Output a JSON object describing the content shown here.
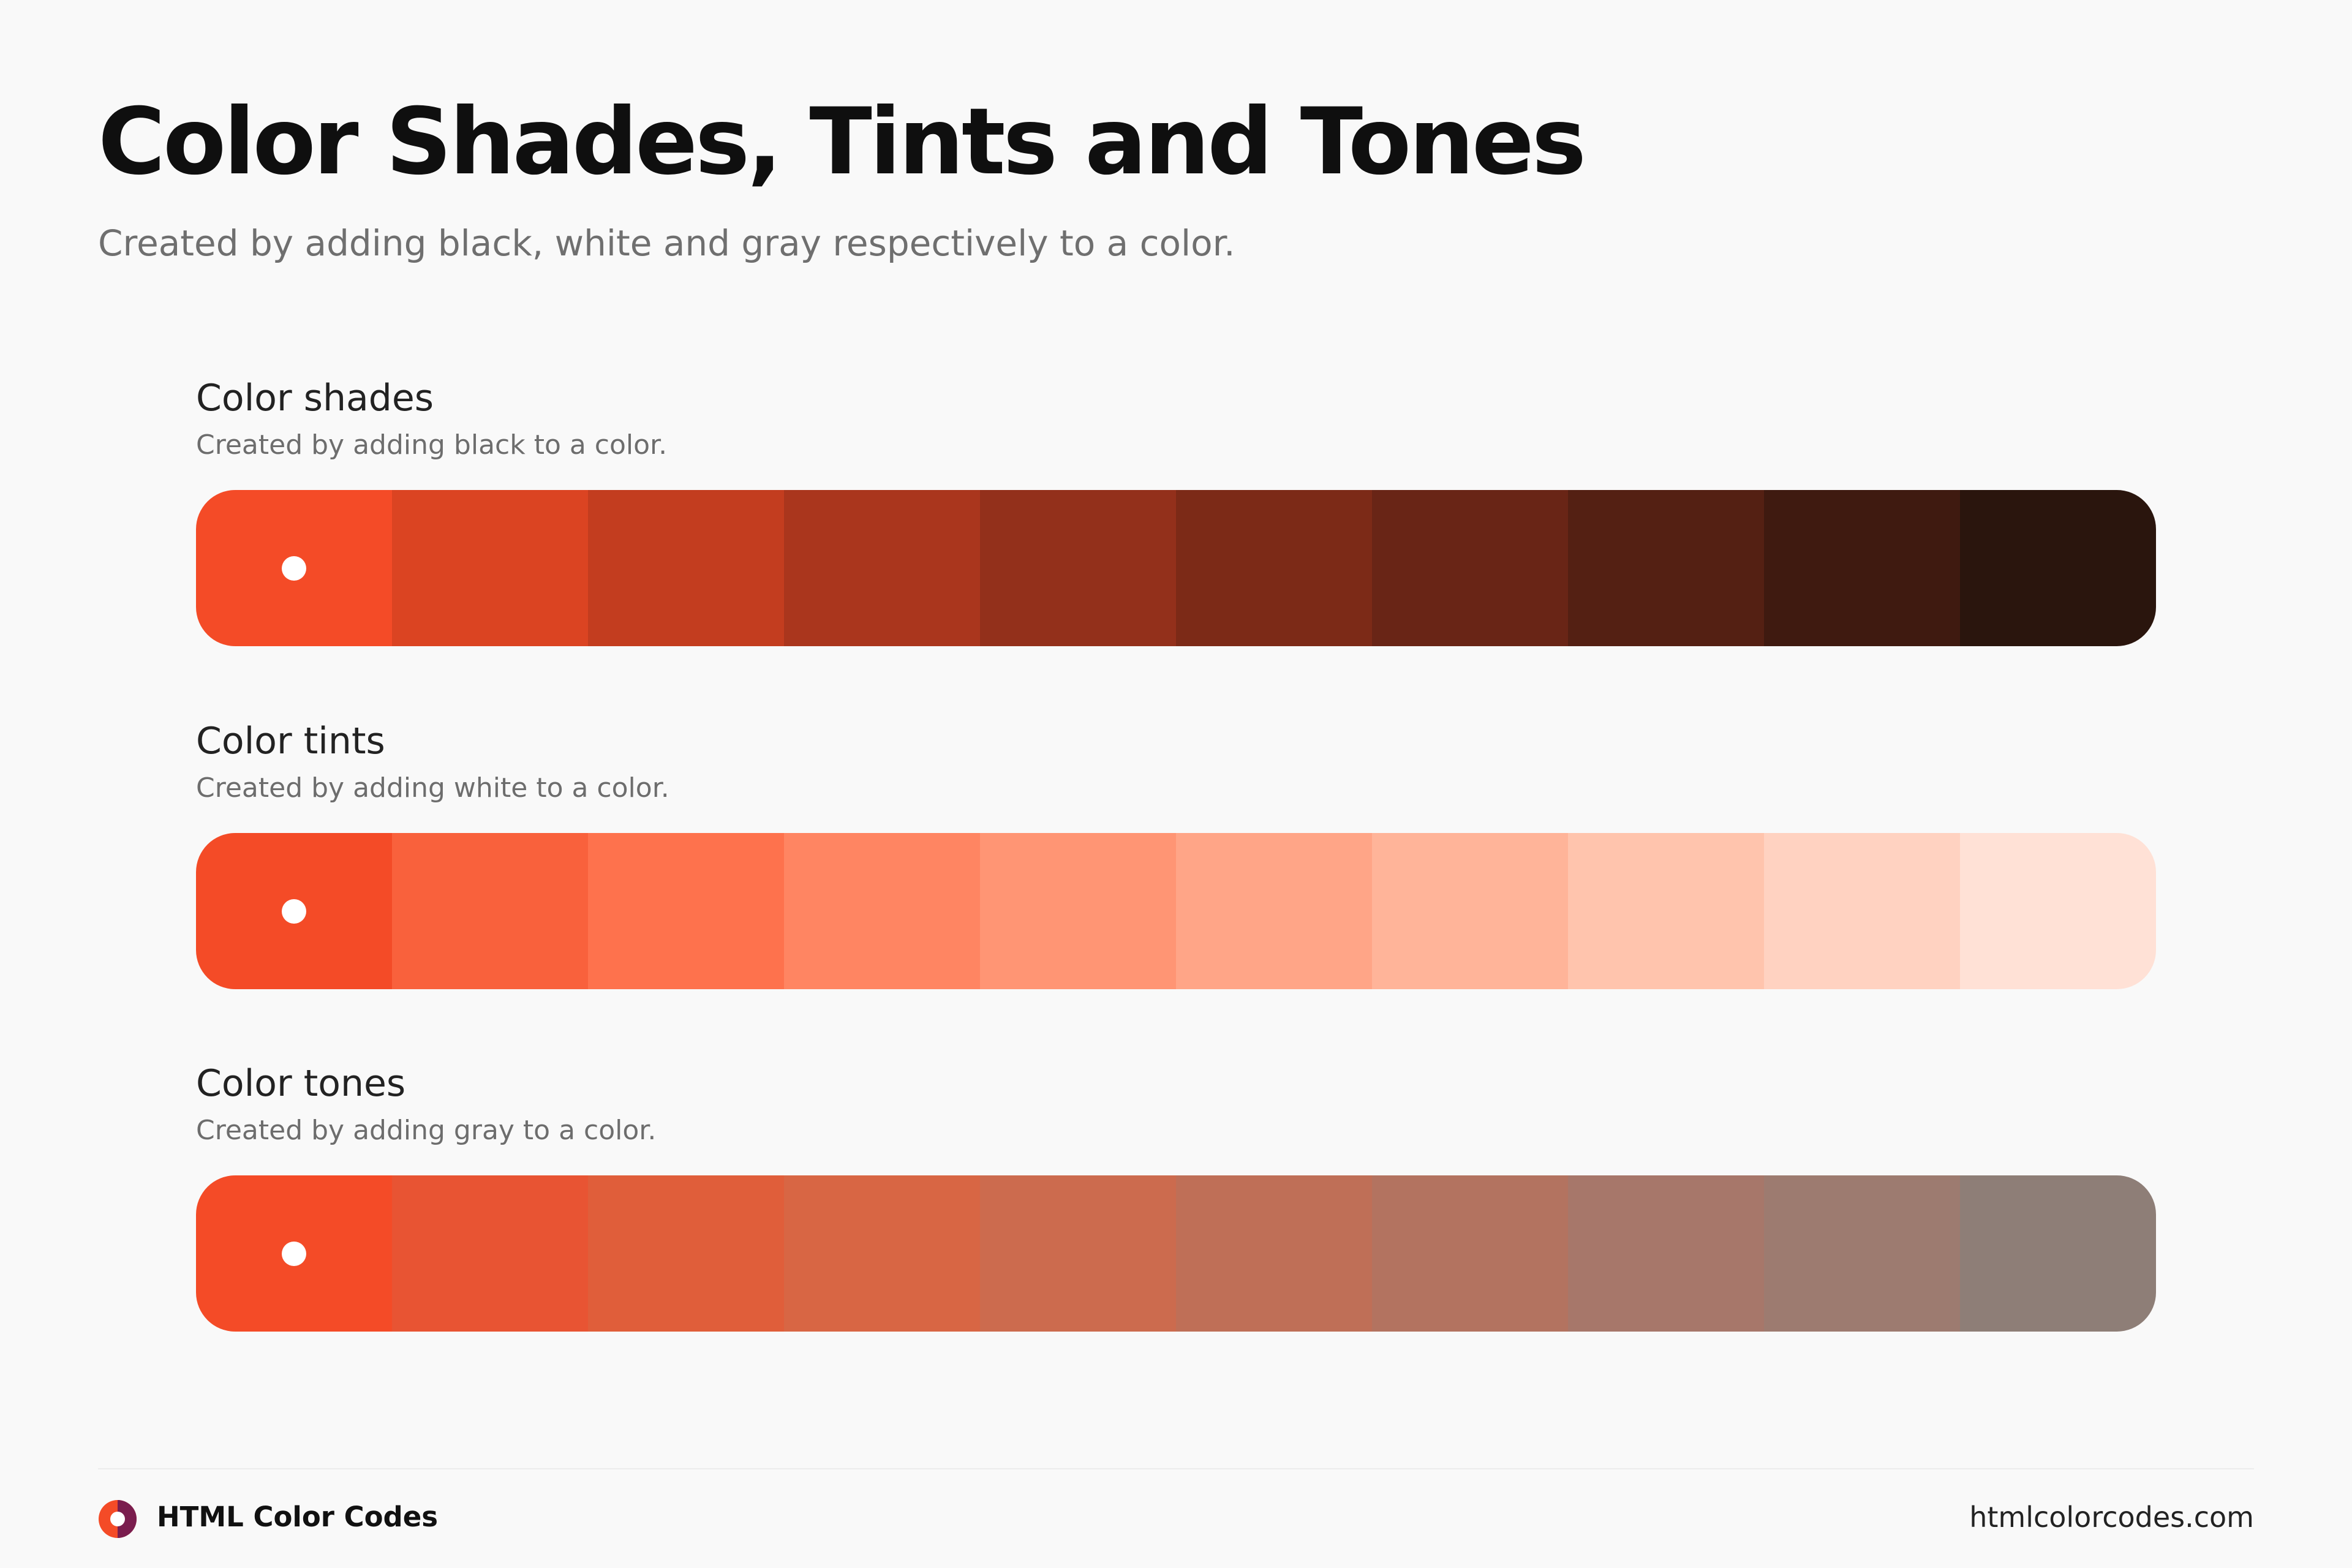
{
  "header": {
    "title": "Color Shades, Tints and Tones",
    "subtitle": "Created by adding black, white and gray respectively to a color."
  },
  "base_color": "#F44B27",
  "sections": [
    {
      "title": "Color shades",
      "description": "Created by adding black to a color.",
      "swatches": [
        "#F44B27",
        "#DB4422",
        "#C33D1F",
        "#AA361D",
        "#93301B",
        "#7C2A17",
        "#692516",
        "#542013",
        "#3F1A10",
        "#2A150D"
      ]
    },
    {
      "title": "Color tints",
      "description": "Created by adding white to a color.",
      "swatches": [
        "#F44B27",
        "#F9613C",
        "#FE724D",
        "#FF8562",
        "#FF9574",
        "#FFA587",
        "#FFB499",
        "#FFC4AD",
        "#FFD2C1",
        "#FFE1D6"
      ]
    },
    {
      "title": "Color tones",
      "description": "Created by adding gray to a color.",
      "swatches": [
        "#F44B27",
        "#E85433",
        "#E05E3A",
        "#D86644",
        "#CC6B4E",
        "#BF6F57",
        "#B37360",
        "#A7776A",
        "#9D7B70",
        "#8E7E77"
      ]
    }
  ],
  "footer": {
    "brand": "HTML Color Codes",
    "url": "htmlcolorcodes.com",
    "logo_icon": "color-wheel-icon",
    "logo_colors": [
      "#F44B27",
      "#7A1D4E"
    ]
  }
}
